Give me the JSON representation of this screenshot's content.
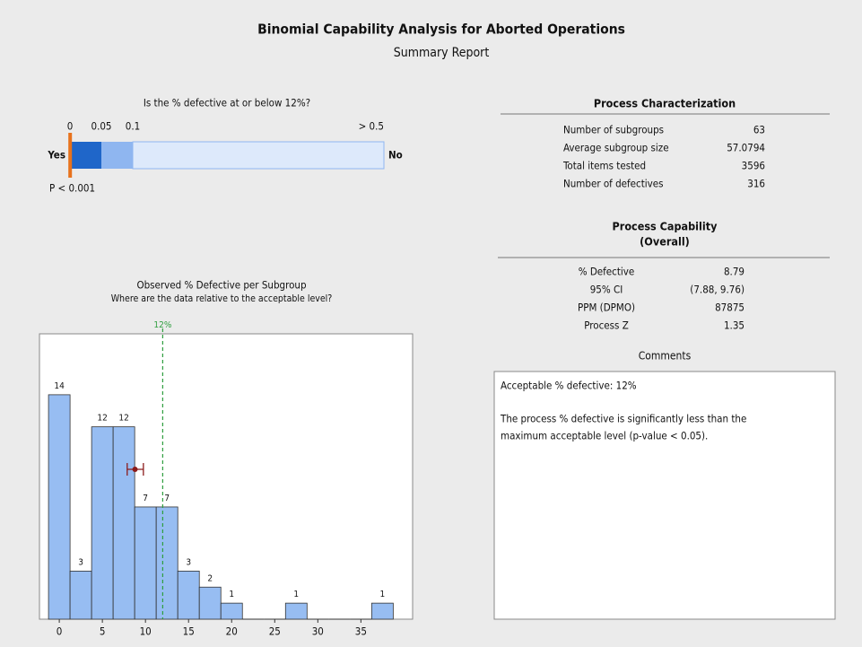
{
  "title": "Binomial Capability Analysis for Aborted Operations",
  "subtitle": "Summary Report",
  "chart_data": [
    {
      "type": "gauge",
      "title": "Is the % defective at or below 12%?",
      "xlim": [
        0,
        0.5
      ],
      "xticks": [
        0,
        0.05,
        0.1,
        {
          "value": 0.5,
          "label": "> 0.5"
        }
      ],
      "bands": [
        {
          "from": 0,
          "to": 0.05,
          "color": "#1f66c9"
        },
        {
          "from": 0.05,
          "to": 0.1,
          "color": "#8fb6f0"
        },
        {
          "from": 0.1,
          "to": 0.5,
          "color": "#dde9fb"
        }
      ],
      "marker": {
        "value": 0.001,
        "label": "P < 0.001",
        "color": "#e8721c"
      },
      "left_label": "Yes",
      "right_label": "No"
    },
    {
      "type": "histogram",
      "title": "Observed % Defective per Subgroup",
      "subtitle": "Where are the data relative to the acceptable level?",
      "bins": [
        -1.25,
        1.25,
        3.75,
        6.25,
        8.75,
        11.25,
        13.75,
        16.25,
        18.75,
        21.25,
        23.75,
        26.25,
        28.75,
        31.25,
        33.75,
        36.25,
        38.75
      ],
      "values": [
        14,
        3,
        12,
        12,
        7,
        7,
        3,
        2,
        1,
        0,
        0,
        1,
        0,
        0,
        0,
        1
      ],
      "color": "#97bdf2",
      "xlim": [
        -2.3,
        41
      ],
      "ylim": [
        0,
        17.8
      ],
      "xticks": [
        0,
        5,
        10,
        15,
        20,
        25,
        30,
        35
      ],
      "reference_line": {
        "value": 12,
        "label": "12%",
        "color": "#2e9e3e"
      },
      "interval": {
        "mean": 8.79,
        "lower": 7.88,
        "upper": 9.76,
        "color": "#8b1a1a"
      }
    }
  ],
  "process_characterization": {
    "title": "Process Characterization",
    "rows": [
      [
        "Number of subgroups",
        63
      ],
      [
        "Average subgroup size",
        57.0794
      ],
      [
        "Total items tested",
        3596
      ],
      [
        "Number of defectives",
        316
      ]
    ]
  },
  "process_capability": {
    "title": "Process Capability",
    "subtitle": "(Overall)",
    "rows": [
      [
        "% Defective",
        8.79
      ],
      [
        "95% CI",
        "(7.88, 9.76)"
      ],
      [
        "PPM (DPMO)",
        87875
      ],
      [
        "Process Z",
        1.35
      ]
    ]
  },
  "comments": {
    "title": "Comments",
    "lines": [
      "Acceptable % defective: 12%",
      "The process % defective is significantly less than the",
      "maximum acceptable level (p-value < 0.05)."
    ]
  }
}
